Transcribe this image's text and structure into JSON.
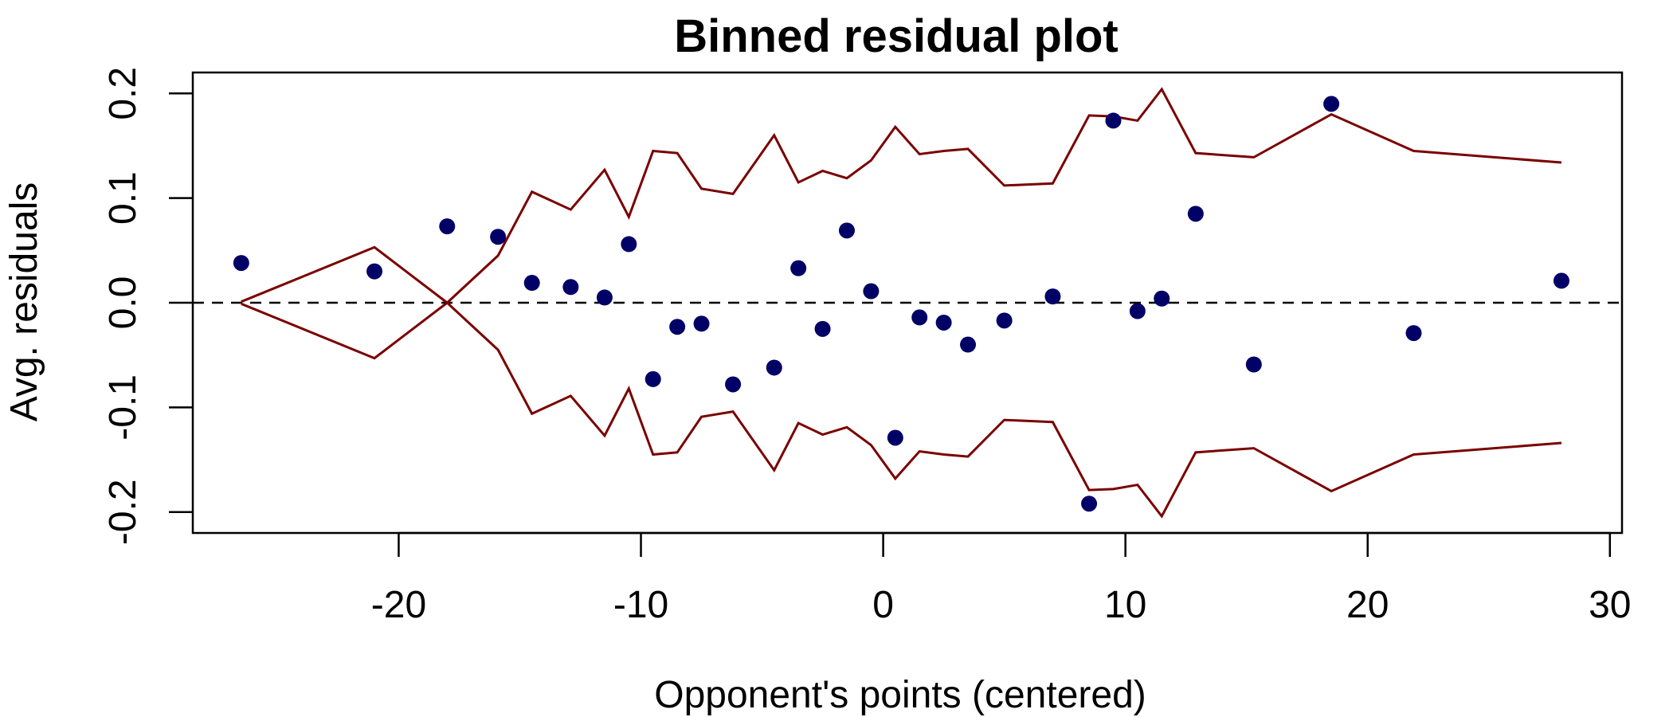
{
  "chart_data": {
    "type": "scatter",
    "title": "Binned residual plot",
    "xlabel": "Opponent's points (centered)",
    "ylabel": "Avg. residuals",
    "xlim": [
      -28.5,
      30.5
    ],
    "ylim": [
      -0.22,
      0.22
    ],
    "x_ticks": [
      {
        "value": -20,
        "label": "-20"
      },
      {
        "value": -10,
        "label": "-10"
      },
      {
        "value": 0,
        "label": "0"
      },
      {
        "value": 10,
        "label": "10"
      },
      {
        "value": 20,
        "label": "20"
      },
      {
        "value": 30,
        "label": "30"
      }
    ],
    "y_ticks": [
      {
        "value": -0.2,
        "label": "-0.2"
      },
      {
        "value": -0.1,
        "label": "-0.1"
      },
      {
        "value": 0.0,
        "label": "0.0"
      },
      {
        "value": 0.1,
        "label": "0.1"
      },
      {
        "value": 0.2,
        "label": "0.2"
      }
    ],
    "reference_line": {
      "y": 0,
      "style": "dashed",
      "color": "#000000"
    },
    "points": {
      "color": "#000066",
      "x": [
        -26.5,
        -21.0,
        -18.0,
        -15.9,
        -14.5,
        -12.9,
        -11.5,
        -10.5,
        -9.5,
        -8.5,
        -7.5,
        -6.2,
        -4.5,
        -3.5,
        -2.5,
        -1.5,
        -0.5,
        0.5,
        1.5,
        2.5,
        3.5,
        5.0,
        7.0,
        8.5,
        9.5,
        10.5,
        11.5,
        12.9,
        15.3,
        18.5,
        21.9,
        28.0
      ],
      "y": [
        0.038,
        0.03,
        0.073,
        0.063,
        0.019,
        0.015,
        0.005,
        0.056,
        -0.073,
        -0.023,
        -0.02,
        -0.078,
        -0.062,
        0.033,
        -0.025,
        0.069,
        0.011,
        -0.129,
        -0.014,
        -0.019,
        -0.04,
        -0.017,
        0.006,
        -0.192,
        0.174,
        -0.008,
        0.004,
        0.085,
        -0.059,
        0.19,
        -0.029,
        0.021
      ]
    },
    "bounds": {
      "color": "#7a0000",
      "x": [
        -26.5,
        -21.0,
        -18.0,
        -15.9,
        -14.5,
        -12.9,
        -11.5,
        -10.5,
        -9.5,
        -8.5,
        -7.5,
        -6.2,
        -4.5,
        -3.5,
        -2.5,
        -1.5,
        -0.5,
        0.5,
        1.5,
        2.5,
        3.5,
        5.0,
        7.0,
        8.5,
        9.5,
        10.5,
        11.5,
        12.9,
        15.3,
        18.5,
        21.9,
        28.0
      ],
      "upper": [
        0.001,
        0.053,
        0.0,
        0.045,
        0.106,
        0.089,
        0.127,
        0.082,
        0.145,
        0.143,
        0.109,
        0.104,
        0.16,
        0.115,
        0.126,
        0.119,
        0.136,
        0.168,
        0.142,
        0.145,
        0.147,
        0.112,
        0.114,
        0.179,
        0.178,
        0.174,
        0.204,
        0.143,
        0.139,
        0.18,
        0.145,
        0.134
      ],
      "lower": [
        -0.001,
        -0.053,
        0.0,
        -0.045,
        -0.106,
        -0.089,
        -0.127,
        -0.082,
        -0.145,
        -0.143,
        -0.109,
        -0.104,
        -0.16,
        -0.115,
        -0.126,
        -0.119,
        -0.136,
        -0.168,
        -0.142,
        -0.145,
        -0.147,
        -0.112,
        -0.114,
        -0.179,
        -0.178,
        -0.174,
        -0.204,
        -0.143,
        -0.139,
        -0.18,
        -0.145,
        -0.134
      ]
    }
  }
}
